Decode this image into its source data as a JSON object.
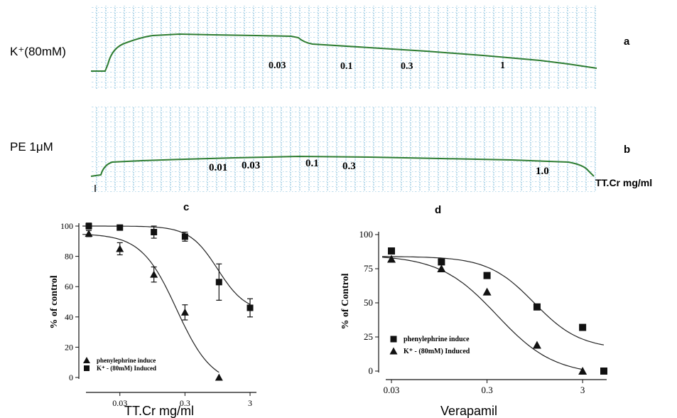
{
  "traces": [
    {
      "id": "a",
      "panel_label": "a",
      "agonist_label": "K⁺(80mM)",
      "dose_labels": [
        "0.03",
        "0.1",
        "0.3",
        "1"
      ]
    },
    {
      "id": "b",
      "panel_label": "b",
      "agonist_label": "PE 1μM",
      "dose_labels": [
        "0.01",
        "0.03",
        "0.1",
        "0.3",
        "1.0"
      ],
      "unit_label": "TT.Cr mg/ml"
    }
  ],
  "colors": {
    "trace": "#2e7d32",
    "grid": "#7ab8d9",
    "data": "#111111"
  },
  "chart_data": [
    {
      "id": "c",
      "panel_label": "c",
      "type": "scatter",
      "xscale": "log",
      "xlim": [
        0.01,
        3.4
      ],
      "ylim": [
        0,
        100
      ],
      "xticks": [
        0.03,
        0.3,
        3
      ],
      "xtick_labels": [
        "0.03",
        "0.3",
        "3"
      ],
      "yticks": [
        0,
        20,
        40,
        60,
        80,
        100
      ],
      "ytick_labels": [
        "0",
        "20",
        "40",
        "60",
        "80",
        "100"
      ],
      "xlabel": "TT.Cr mg/ml",
      "ylabel": "% of control",
      "legend_position": "bottom-left",
      "series": [
        {
          "name": "phenylephrine induce",
          "marker": "triangle",
          "x": [
            0.01,
            0.03,
            0.1,
            0.3,
            1.0
          ],
          "y": [
            95,
            85,
            68,
            43,
            0
          ],
          "err": [
            2,
            4,
            5,
            5,
            0
          ],
          "fit": {
            "top": 95,
            "bottom": -5,
            "logEC50": -0.65,
            "hill": 1.6
          }
        },
        {
          "name": "K⁺ - (80mM) Induced",
          "marker": "square",
          "x": [
            0.01,
            0.03,
            0.1,
            0.3,
            1.0,
            3.0
          ],
          "y": [
            100,
            99,
            96,
            93,
            63,
            46
          ],
          "err": [
            2,
            1,
            4,
            3,
            12,
            6
          ],
          "fit": {
            "top": 100,
            "bottom": 43,
            "logEC50": -0.02,
            "hill": 2.0
          }
        }
      ]
    },
    {
      "id": "d",
      "panel_label": "d",
      "type": "scatter",
      "xscale": "log",
      "xlim": [
        0.028,
        5.0
      ],
      "ylim": [
        0,
        100
      ],
      "xticks": [
        0.03,
        0.3,
        3
      ],
      "xtick_labels": [
        "0.03",
        "0.3",
        "3"
      ],
      "yticks": [
        0,
        25,
        50,
        75,
        100
      ],
      "ytick_labels": [
        "0",
        "25",
        "50",
        "75",
        "100"
      ],
      "xlabel": "Verapamil",
      "ylabel": "% of Control",
      "legend_position": "bottom-left",
      "series": [
        {
          "name": "phenylephrine induce",
          "marker": "square",
          "x": [
            0.03,
            0.1,
            0.3,
            1.0,
            3.0,
            5.0
          ],
          "y": [
            88,
            80,
            70,
            47,
            32,
            0
          ],
          "fit": {
            "top": 84,
            "bottom": 16,
            "logEC50": -0.03,
            "hill": 1.8
          }
        },
        {
          "name": "K⁺ - (80mM) Induced",
          "marker": "triangle",
          "x": [
            0.03,
            0.1,
            0.3,
            1.0,
            3.0
          ],
          "y": [
            82,
            75,
            58,
            19,
            0
          ],
          "fit": {
            "top": 85,
            "bottom": -3,
            "logEC50": -0.42,
            "hill": 1.45
          }
        }
      ]
    }
  ]
}
